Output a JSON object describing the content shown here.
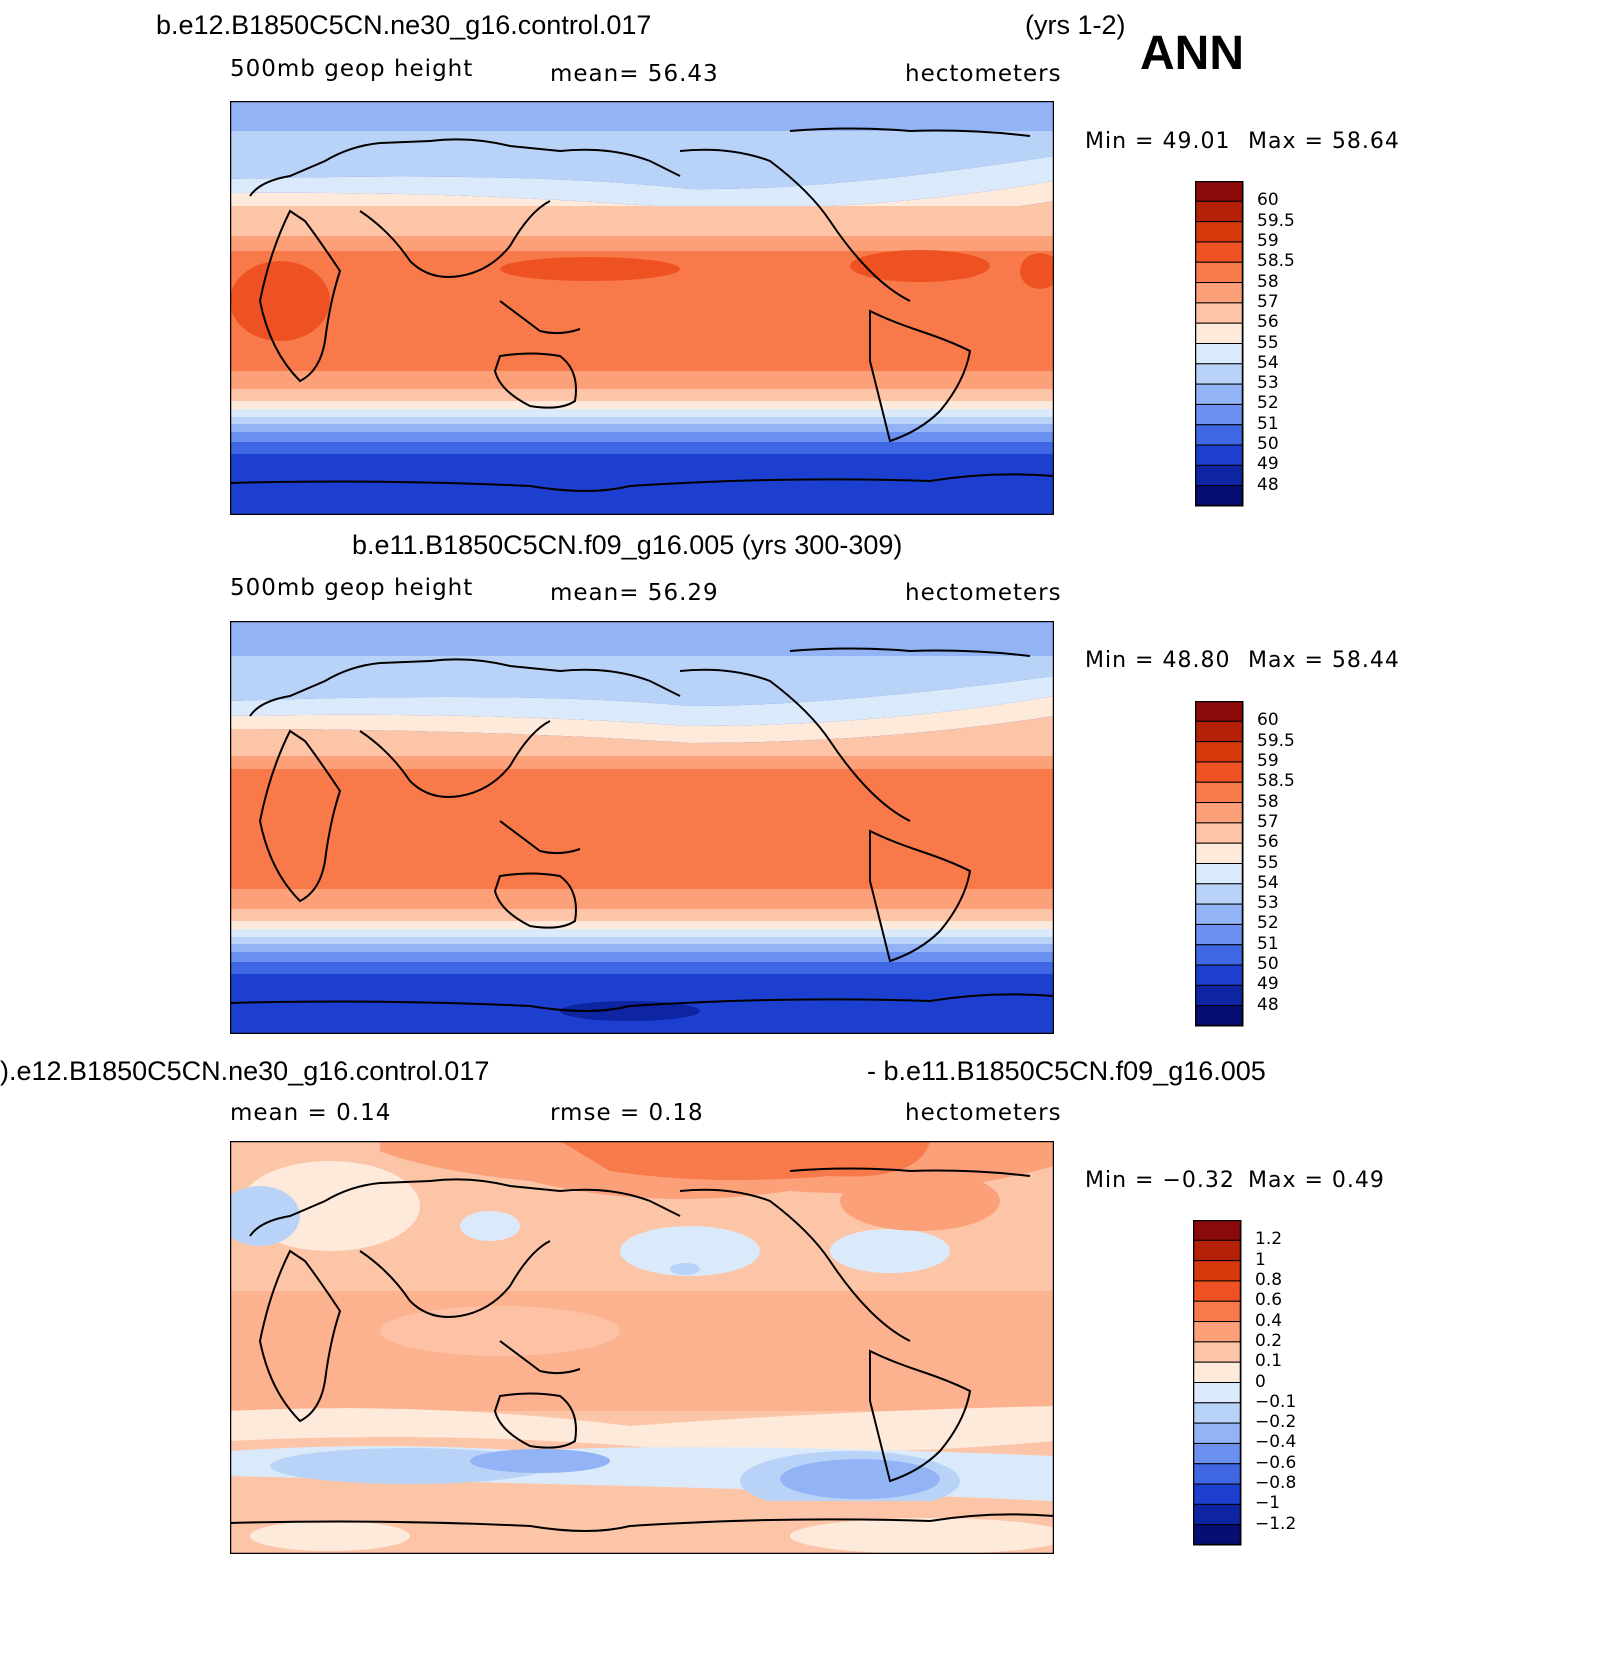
{
  "header": {
    "season": "ANN"
  },
  "panels": [
    {
      "title_left": "b.e12.B1850C5CN.ne30_g16.control.017",
      "title_right": "(yrs 1-2)",
      "sub_left": "500mb  geop  height",
      "sub_mid": "mean=   56.43",
      "sub_right": "hectometers",
      "minmax_min": "Min  =    49.01",
      "minmax_max": "Max  =    58.64",
      "labelbar": {
        "labels": [
          "60",
          "59.5",
          "59",
          "58.5",
          "58",
          "57",
          "56",
          "55",
          "54",
          "53",
          "52",
          "51",
          "50",
          "49",
          "48"
        ],
        "colors": [
          "#8c0a0a",
          "#b52008",
          "#d63a0c",
          "#ee5222",
          "#f8794a",
          "#fca07a",
          "#fdc5a8",
          "#feeadb",
          "#dbeafa",
          "#b9d3f8",
          "#92b3f5",
          "#6c90ef",
          "#3f67e4",
          "#1c3fcf",
          "#0d24a3",
          "#060d73"
        ]
      }
    },
    {
      "title_center": "b.e11.B1850C5CN.f09_g16.005 (yrs 300-309)",
      "sub_left": "500mb  geop  height",
      "sub_mid": "mean=   56.29",
      "sub_right": "hectometers",
      "minmax_min": "Min  =    48.80",
      "minmax_max": "Max  =    58.44",
      "labelbar": {
        "labels": [
          "60",
          "59.5",
          "59",
          "58.5",
          "58",
          "57",
          "56",
          "55",
          "54",
          "53",
          "52",
          "51",
          "50",
          "49",
          "48"
        ],
        "colors": [
          "#8c0a0a",
          "#b52008",
          "#d63a0c",
          "#ee5222",
          "#f8794a",
          "#fca07a",
          "#fdc5a8",
          "#feeadb",
          "#dbeafa",
          "#b9d3f8",
          "#92b3f5",
          "#6c90ef",
          "#3f67e4",
          "#1c3fcf",
          "#0d24a3",
          "#060d73"
        ]
      }
    },
    {
      "title_left": ").e12.B1850C5CN.ne30_g16.control.017",
      "title_right": "- b.e11.B1850C5CN.f09_g16.005",
      "sub_left": "mean  =     0.14",
      "sub_mid": "rmse  =     0.18",
      "sub_right": "hectometers",
      "minmax_min": "Min  =    −0.32",
      "minmax_max": "Max  =      0.49",
      "labelbar": {
        "labels": [
          "1.2",
          "1",
          "0.8",
          "0.6",
          "0.4",
          "0.2",
          "0.1",
          "0",
          "−0.1",
          "−0.2",
          "−0.4",
          "−0.6",
          "−0.8",
          "−1",
          "−1.2"
        ],
        "colors": [
          "#8c0a0a",
          "#b52008",
          "#d63a0c",
          "#ee5222",
          "#f8794a",
          "#fca07a",
          "#fdc5a8",
          "#feeadb",
          "#dbeafa",
          "#b9d3f8",
          "#92b3f5",
          "#6c90ef",
          "#3f67e4",
          "#1c3fcf",
          "#0d24a3",
          "#060d73"
        ]
      }
    }
  ]
}
